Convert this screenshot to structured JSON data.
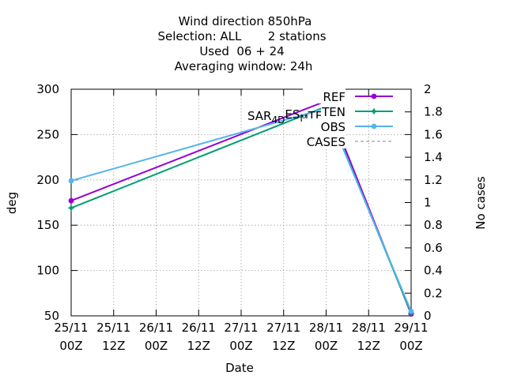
{
  "chart_data": {
    "type": "line",
    "title_lines": [
      "Wind direction 850hPa",
      "Selection: ALL       2 stations",
      "Used  06 + 24",
      "Averaging window: 24h"
    ],
    "xlabel": "Date",
    "ylabel": "deg",
    "y2label": "No cases",
    "x_ticks": [
      [
        "25/11",
        "00Z"
      ],
      [
        "25/11",
        "12Z"
      ],
      [
        "26/11",
        "00Z"
      ],
      [
        "26/11",
        "12Z"
      ],
      [
        "27/11",
        "00Z"
      ],
      [
        "27/11",
        "12Z"
      ],
      [
        "28/11",
        "00Z"
      ],
      [
        "28/11",
        "12Z"
      ],
      [
        "29/11",
        "00Z"
      ]
    ],
    "x_range": [
      0,
      8
    ],
    "ylim": [
      50,
      300
    ],
    "y_ticks": [
      50,
      100,
      150,
      200,
      250,
      300
    ],
    "y2lim": [
      0,
      2
    ],
    "y2_ticks": [
      "0",
      "0.2",
      "0.4",
      "0.6",
      "0.8",
      "1",
      "1.2",
      "1.4",
      "1.6",
      "1.8",
      "2"
    ],
    "grid": true,
    "legend_position": "top-right",
    "overlapping_label": "SAR_4D_ES_M_TEN",
    "series": [
      {
        "name": "REF",
        "color": "#9400d3",
        "marker": "circle",
        "x": [
          0,
          6,
          8
        ],
        "y": [
          177,
          287,
          52
        ]
      },
      {
        "name": "TEN",
        "color": "#009e73",
        "marker": "star",
        "x": [
          0,
          6,
          8
        ],
        "y": [
          169,
          281,
          53
        ]
      },
      {
        "name": "OBS",
        "color": "#56b4e9",
        "marker": "circle",
        "x": [
          0,
          6,
          8
        ],
        "y": [
          199,
          279,
          55
        ]
      },
      {
        "name": "CASES",
        "color": "#888888",
        "dashed": true,
        "x": [],
        "y": []
      }
    ]
  }
}
